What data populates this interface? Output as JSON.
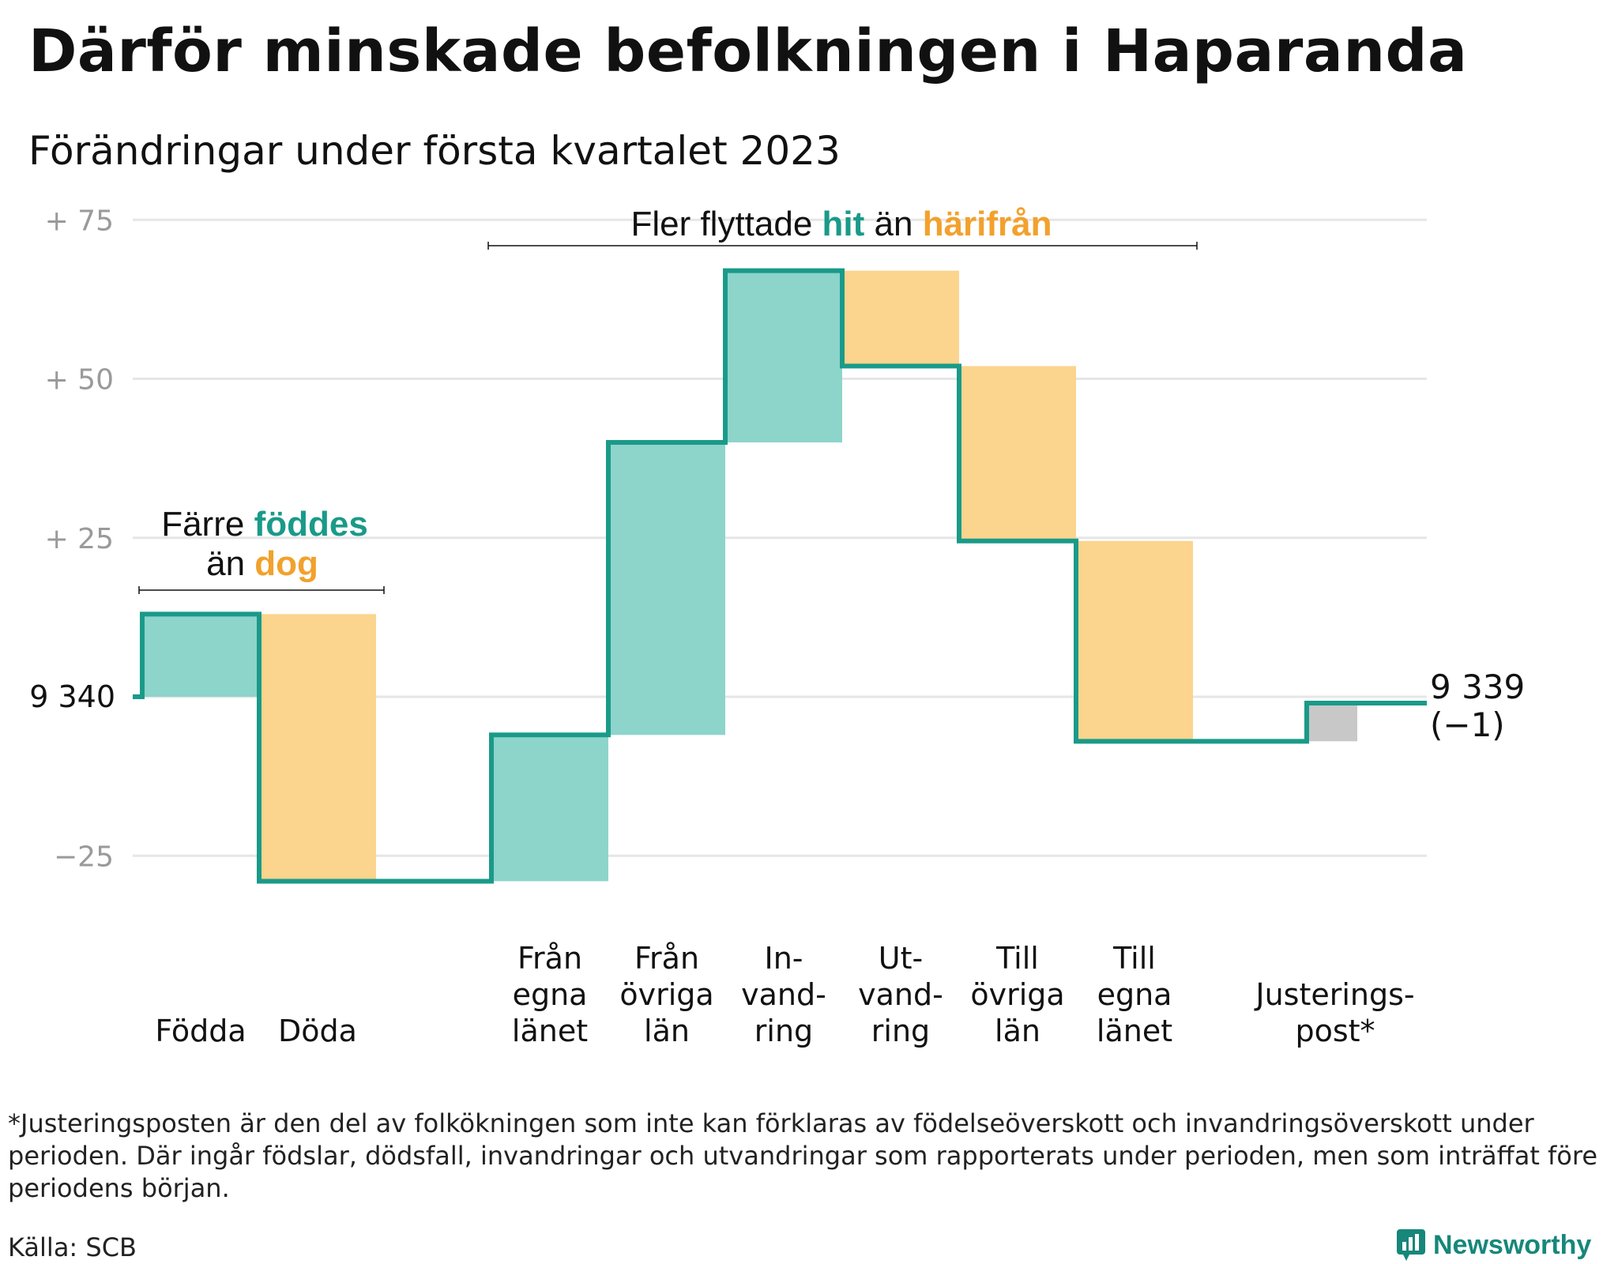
{
  "title": "Därför minskade befolkningen i Haparanda",
  "subtitle": "Förändringar under första kvartalet 2023",
  "footnote": "*Justeringsposten är den del av folkökningen som inte kan förklaras av födelseöverskott och invandringsöverskott under perioden. Där ingår födslar, dödsfall, invandringar och utvandringar som rapporterats under perioden, men som inträffat före periodens början.",
  "source": "Källa: SCB",
  "brand": "Newsworthy",
  "colors": {
    "positive": "#8dd4cb",
    "negative": "#fbd48d",
    "adjustment": "#c8c8c8",
    "line": "#1a9a89",
    "teal_text": "#1a9a89",
    "orange_text": "#f2a12c",
    "grid": "#e6e6e6"
  },
  "annotations": {
    "births": {
      "line1_a": "Färre ",
      "line1_b": "föddes",
      "line2_a": "än ",
      "line2_b": "dog"
    },
    "migration": {
      "part_a": "Fler flyttade ",
      "part_b": "hit",
      "part_c": " än ",
      "part_d": "härifrån"
    }
  },
  "end_label": {
    "value": "9 339",
    "change": "(−1)"
  },
  "chart_data": {
    "type": "waterfall",
    "title": "Därför minskade befolkningen i Haparanda",
    "subtitle": "Förändringar under första kvartalet 2023",
    "start_value": 9340,
    "start_label": "9 340",
    "end_value": 9339,
    "y_ticks": [
      {
        "value": 75,
        "label": "+ 75"
      },
      {
        "value": 50,
        "label": "+ 50"
      },
      {
        "value": 25,
        "label": "+ 25"
      },
      {
        "value": 0,
        "label": "9 340"
      },
      {
        "value": -25,
        "label": "−25"
      }
    ],
    "ylim": [
      -30,
      80
    ],
    "grid": true,
    "steps": [
      {
        "category": [
          "Födda"
        ],
        "value": 13,
        "group": "births"
      },
      {
        "category": [
          "Döda"
        ],
        "value": -42,
        "group": "births"
      },
      {
        "category": [
          "Från",
          "egna",
          "länet"
        ],
        "value": 23,
        "group": "migration"
      },
      {
        "category": [
          "Från",
          "övriga",
          "län"
        ],
        "value": 46,
        "group": "migration"
      },
      {
        "category": [
          "In-",
          "vand-",
          "ring"
        ],
        "value": 27,
        "group": "migration"
      },
      {
        "category": [
          "Ut-",
          "vand-",
          "ring"
        ],
        "value": -15,
        "group": "migration"
      },
      {
        "category": [
          "Till",
          "övriga",
          "län"
        ],
        "value": -27.5,
        "group": "migration"
      },
      {
        "category": [
          "Till",
          "egna",
          "länet"
        ],
        "value": -31.5,
        "group": "migration"
      },
      {
        "category": [
          "Justerings-",
          "post*"
        ],
        "value": 6,
        "group": "adjustment"
      }
    ]
  }
}
